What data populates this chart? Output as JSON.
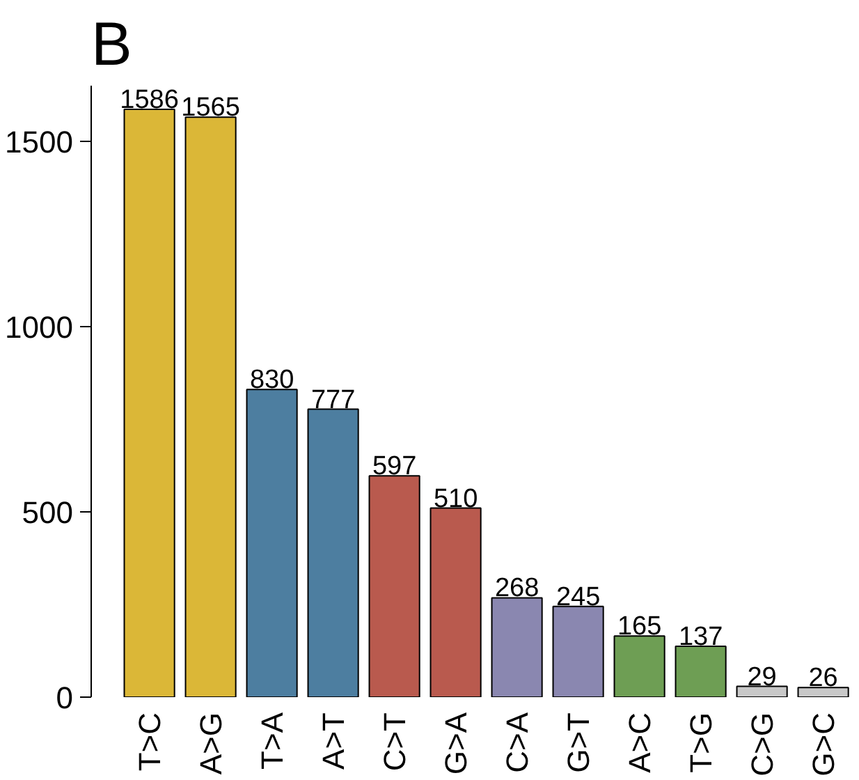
{
  "chart_data": {
    "type": "bar",
    "title": "B",
    "categories": [
      "T>C",
      "A>G",
      "T>A",
      "A>T",
      "C>T",
      "G>A",
      "C>A",
      "G>T",
      "A>C",
      "T>G",
      "C>G",
      "G>C"
    ],
    "values": [
      1586,
      1565,
      830,
      777,
      597,
      510,
      268,
      245,
      165,
      137,
      29,
      26
    ],
    "colors": [
      "#dbb737",
      "#dbb737",
      "#4d7ea0",
      "#4d7ea0",
      "#b95a4e",
      "#b95a4e",
      "#8a87b0",
      "#8a87b0",
      "#6e9e54",
      "#6e9e54",
      "#c8c8c8",
      "#c8c8c8"
    ],
    "ylim": [
      0,
      1650
    ],
    "yticks": [
      0,
      500,
      1000,
      1500
    ],
    "grid": false,
    "data_labels": true
  }
}
